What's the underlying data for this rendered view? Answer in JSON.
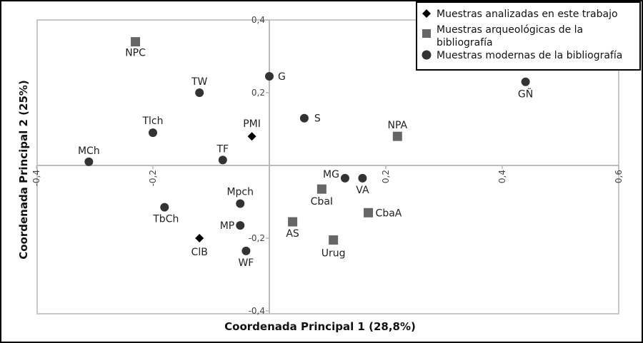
{
  "chart_data": {
    "type": "scatter",
    "xlabel": "Coordenada Principal 1 (28,8%)",
    "ylabel": "Coordenada Principal 2 (25%)",
    "xlim": [
      -0.4,
      0.6
    ],
    "ylim": [
      -0.4,
      0.4
    ],
    "x_ticks": [
      -0.4,
      -0.2,
      0.2,
      0.4,
      0.6
    ],
    "x_tick_labels": [
      "-0,4",
      "-0,2",
      "0,2",
      "0,4",
      "0,6"
    ],
    "y_ticks": [
      0.4,
      0.2,
      -0.2,
      -0.4
    ],
    "y_tick_labels": [
      "0,4",
      "0,2",
      "-0,2",
      "-0,4"
    ],
    "grid": false,
    "legend_position": "top-right",
    "colors": {
      "diamond": "#000000",
      "square": "#666666",
      "circle": "#333333",
      "axes": "#bbbbbb"
    },
    "series": [
      {
        "name": "Muestras analizadas en este trabajo",
        "marker": "diamond",
        "points": [
          {
            "label": "PMI",
            "x": -0.03,
            "y": 0.08
          },
          {
            "label": "ClB",
            "x": -0.12,
            "y": -0.2
          }
        ]
      },
      {
        "name": "Muestras arqueológicas de la bibliografía",
        "marker": "square",
        "points": [
          {
            "label": "NPC",
            "x": -0.23,
            "y": 0.34
          },
          {
            "label": "NPA",
            "x": 0.22,
            "y": 0.08
          },
          {
            "label": "CbaI",
            "x": 0.09,
            "y": -0.065
          },
          {
            "label": "CbaA",
            "x": 0.17,
            "y": -0.13
          },
          {
            "label": "AS",
            "x": 0.04,
            "y": -0.155
          },
          {
            "label": "Urug",
            "x": 0.11,
            "y": -0.205
          }
        ]
      },
      {
        "name": "Muestras modernas de la bibliografía",
        "marker": "circle",
        "points": [
          {
            "label": "G",
            "x": 0.0,
            "y": 0.245
          },
          {
            "label": "TW",
            "x": -0.12,
            "y": 0.2
          },
          {
            "label": "GÑ",
            "x": 0.44,
            "y": 0.23
          },
          {
            "label": "S",
            "x": 0.06,
            "y": 0.13
          },
          {
            "label": "Tlch",
            "x": -0.2,
            "y": 0.09
          },
          {
            "label": "TF",
            "x": -0.08,
            "y": 0.015
          },
          {
            "label": "MCh",
            "x": -0.31,
            "y": 0.01
          },
          {
            "label": "MG",
            "x": 0.13,
            "y": -0.035
          },
          {
            "label": "VA",
            "x": 0.16,
            "y": -0.035
          },
          {
            "label": "Mpch",
            "x": -0.05,
            "y": -0.105
          },
          {
            "label": "TbCh",
            "x": -0.18,
            "y": -0.115
          },
          {
            "label": "MP",
            "x": -0.05,
            "y": -0.165
          },
          {
            "label": "WF",
            "x": -0.04,
            "y": -0.235
          }
        ]
      }
    ]
  }
}
